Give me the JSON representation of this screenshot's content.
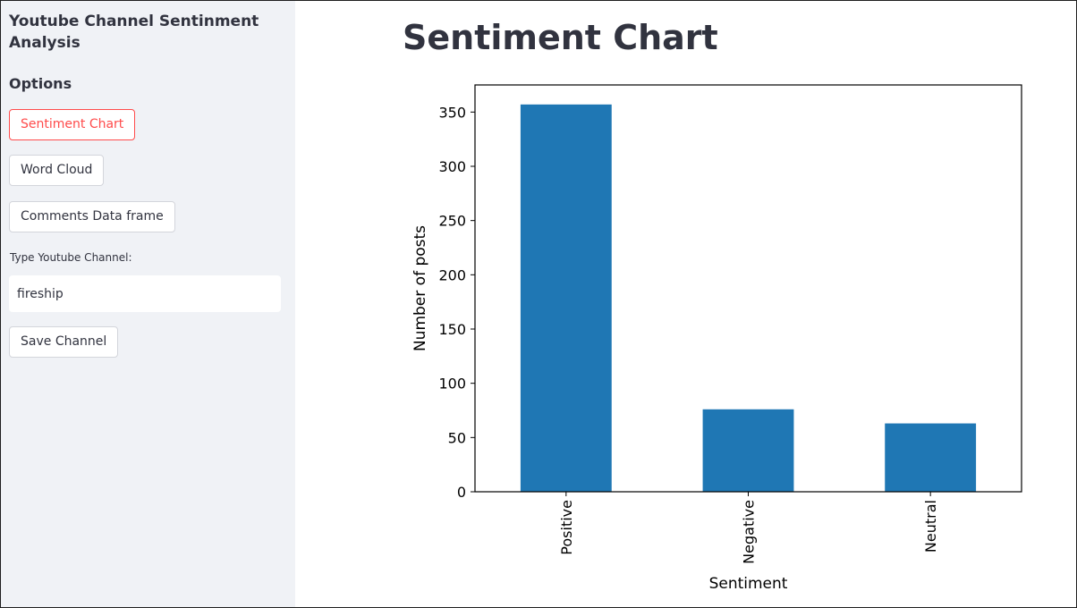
{
  "sidebar": {
    "title": "Youtube Channel Sentinment Analysis",
    "options_label": "Options",
    "buttons": {
      "sentiment_chart": "Sentiment Chart",
      "word_cloud": "Word Cloud",
      "comments_data_frame": "Comments Data frame"
    },
    "channel_input": {
      "label": "Type Youtube Channel:",
      "value": "fireship"
    },
    "save_button": "Save Channel"
  },
  "main": {
    "title": "Sentiment Chart"
  },
  "colors": {
    "accent": "#ff4b4b",
    "bar": "#1f77b4",
    "sidebar_bg": "#f0f2f6",
    "text": "#31333f"
  },
  "chart_data": {
    "type": "bar",
    "categories": [
      "Positive",
      "Negative",
      "Neutral"
    ],
    "values": [
      357,
      76,
      63
    ],
    "xlabel": "Sentiment",
    "ylabel": "Number of posts",
    "ylim": [
      0,
      375
    ],
    "yticks": [
      0,
      50,
      100,
      150,
      200,
      250,
      300,
      350
    ],
    "grid": false
  }
}
